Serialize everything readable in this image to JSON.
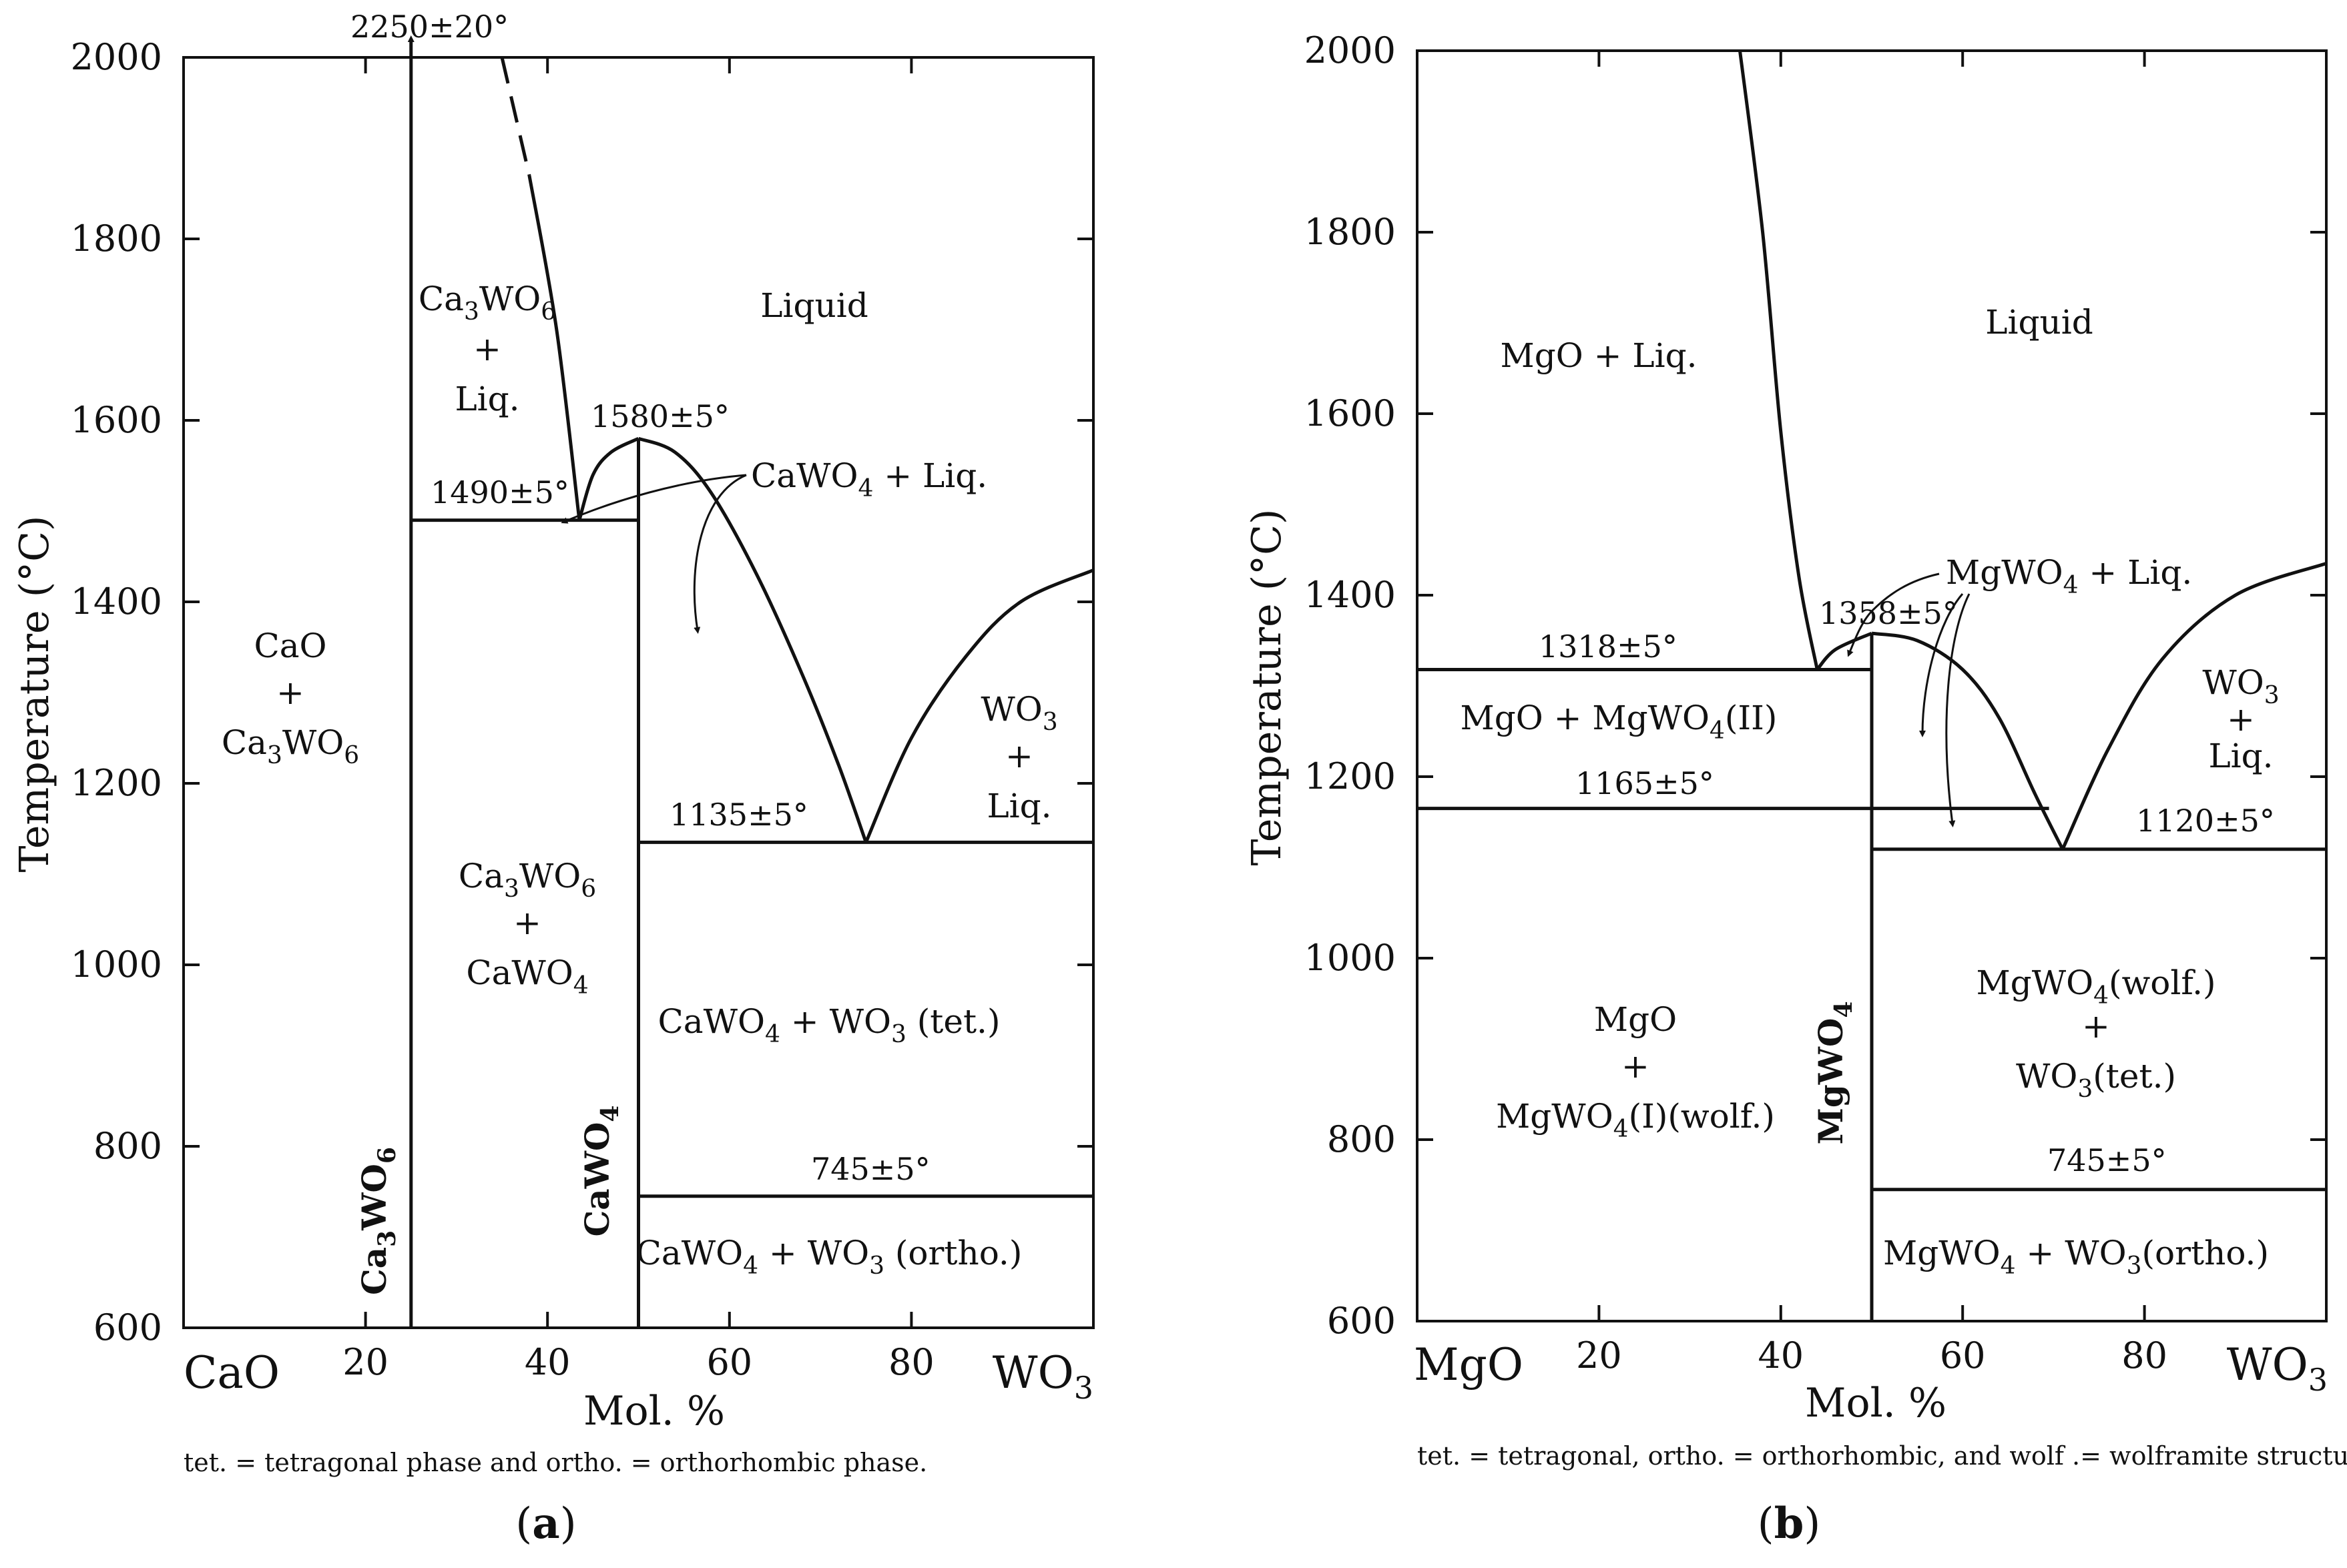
{
  "chart_data": [
    {
      "type": "line",
      "panel_label": "(a)",
      "xlabel": "Mol. %",
      "ylabel": "Temperature (°C)",
      "xlim": [
        0,
        100
      ],
      "ylim": [
        600,
        2000
      ],
      "x_end_labels": {
        "left": "CaO",
        "right": "WO3"
      },
      "x_ticks": [
        20,
        40,
        60,
        80
      ],
      "y_ticks": [
        600,
        800,
        1000,
        1200,
        1400,
        1600,
        1800,
        2000
      ],
      "footnote": "tet. = tetragonal phase and ortho. = orthorhombic phase.",
      "compounds": [
        {
          "name": "Ca3WO6",
          "x": 25
        },
        {
          "name": "CaWO4",
          "x": 50
        }
      ],
      "temperatures": {
        "ca3wo6_melt": "2250±20°",
        "eutectic_1": "1490±5°",
        "cawo4_melt": "1580±5°",
        "eutectic_2": "1135±5°",
        "transition": "745±5°"
      },
      "region_labels": {
        "liquid": "Liquid",
        "ca3wo6_liq": [
          "Ca3WO6",
          "+",
          "Liq."
        ],
        "cawo4_liq": "CaWO4 + Liq.",
        "cao_ca3wo6": [
          "CaO",
          "+",
          "Ca3WO6"
        ],
        "ca3wo6_cawo4": [
          "Ca3WO6",
          "+",
          "CaWO4"
        ],
        "wo3_liq": [
          "WO3",
          "+",
          "Liq."
        ],
        "cawo4_wo3_tet": "CaWO4 + WO3 (tet.)",
        "cawo4_wo3_ortho": "CaWO4 + WO3 (ortho.)"
      },
      "series": [
        {
          "name": "liquidus Ca3WO6 (dashed)",
          "style": "dashed",
          "points": [
            [
              35,
              2000
            ],
            [
              38,
              1870
            ]
          ]
        },
        {
          "name": "liquidus Ca3WO6",
          "points": [
            [
              38,
              1870
            ],
            [
              41,
              1700
            ],
            [
              43.5,
              1490
            ]
          ]
        },
        {
          "name": "liquidus CaWO4 left",
          "points": [
            [
              43.5,
              1490
            ],
            [
              45,
              1540
            ],
            [
              47,
              1565
            ],
            [
              50,
              1580
            ]
          ]
        },
        {
          "name": "liquidus CaWO4 right",
          "points": [
            [
              50,
              1580
            ],
            [
              54,
              1565
            ],
            [
              58,
              1520
            ],
            [
              63,
              1430
            ],
            [
              68,
              1320
            ],
            [
              72,
              1220
            ],
            [
              75,
              1135
            ]
          ]
        },
        {
          "name": "liquidus WO3",
          "points": [
            [
              75,
              1135
            ],
            [
              80,
              1250
            ],
            [
              86,
              1340
            ],
            [
              92,
              1400
            ],
            [
              100,
              1435
            ]
          ]
        },
        {
          "name": "eutectic 1490",
          "points": [
            [
              25,
              1490
            ],
            [
              50,
              1490
            ]
          ]
        },
        {
          "name": "eutectic 1135",
          "points": [
            [
              50,
              1135
            ],
            [
              100,
              1135
            ]
          ]
        },
        {
          "name": "transition 745",
          "points": [
            [
              50,
              745
            ],
            [
              100,
              745
            ]
          ]
        },
        {
          "name": "Ca3WO6 line",
          "points": [
            [
              25,
              600
            ],
            [
              25,
              2000
            ]
          ]
        },
        {
          "name": "CaWO4 line",
          "points": [
            [
              50,
              600
            ],
            [
              50,
              1580
            ]
          ]
        }
      ]
    },
    {
      "type": "line",
      "panel_label": "(b)",
      "xlabel": "Mol. %",
      "ylabel": "Temperature (°C)",
      "xlim": [
        0,
        100
      ],
      "ylim": [
        600,
        2000
      ],
      "x_end_labels": {
        "left": "MgO",
        "right": "WO3"
      },
      "x_ticks": [
        20,
        40,
        60,
        80
      ],
      "y_ticks": [
        600,
        800,
        1000,
        1200,
        1400,
        1600,
        1800,
        2000
      ],
      "footnote": "tet. = tetragonal, ortho. = orthorhombic, and wolf .= wolframite structure.",
      "compounds": [
        {
          "name": "MgWO4",
          "x": 50
        }
      ],
      "temperatures": {
        "eutectic_1": "1318±5°",
        "mgwo4_melt": "1358±5°",
        "transition_1": "1165±5°",
        "eutectic_2": "1120±5°",
        "transition_2": "745±5°"
      },
      "region_labels": {
        "liquid": "Liquid",
        "mgo_liq": "MgO + Liq.",
        "mgwo4_liq": "MgWO4 + Liq.",
        "mgo_mgwo4_ii": "MgO + MgWO4(II)",
        "wo3_liq": [
          "WO3",
          "+",
          "Liq."
        ],
        "mgo_mgwo4_i": [
          "MgO",
          "+",
          "MgWO4(I)(wolf.)"
        ],
        "mgwo4_wo3_tet": [
          "MgWO4(wolf.)",
          "+",
          "WO3(tet.)"
        ],
        "mgwo4_wo3_ortho": "MgWO4 + WO3(ortho.)"
      },
      "series": [
        {
          "name": "liquidus MgO",
          "points": [
            [
              35.5,
              2000
            ],
            [
              38,
              1800
            ],
            [
              40,
              1580
            ],
            [
              42,
              1420
            ],
            [
              44,
              1318
            ]
          ]
        },
        {
          "name": "liquidus MgWO4 left",
          "points": [
            [
              44,
              1318
            ],
            [
              46,
              1340
            ],
            [
              50,
              1358
            ]
          ]
        },
        {
          "name": "liquidus MgWO4 right",
          "points": [
            [
              50,
              1358
            ],
            [
              55,
              1350
            ],
            [
              60,
              1318
            ],
            [
              64,
              1265
            ],
            [
              68,
              1180
            ],
            [
              71,
              1120
            ]
          ]
        },
        {
          "name": "liquidus WO3",
          "points": [
            [
              71,
              1120
            ],
            [
              76,
              1230
            ],
            [
              82,
              1330
            ],
            [
              90,
              1400
            ],
            [
              100,
              1435
            ]
          ]
        },
        {
          "name": "eutectic 1318",
          "points": [
            [
              0,
              1318
            ],
            [
              50,
              1318
            ]
          ]
        },
        {
          "name": "transition 1165",
          "points": [
            [
              0,
              1165
            ],
            [
              69.5,
              1165
            ]
          ]
        },
        {
          "name": "eutectic 1120",
          "points": [
            [
              50,
              1120
            ],
            [
              100,
              1120
            ]
          ]
        },
        {
          "name": "transition 745",
          "points": [
            [
              50,
              745
            ],
            [
              100,
              745
            ]
          ]
        },
        {
          "name": "MgWO4 line",
          "points": [
            [
              50,
              600
            ],
            [
              50,
              1358
            ]
          ]
        }
      ]
    }
  ]
}
